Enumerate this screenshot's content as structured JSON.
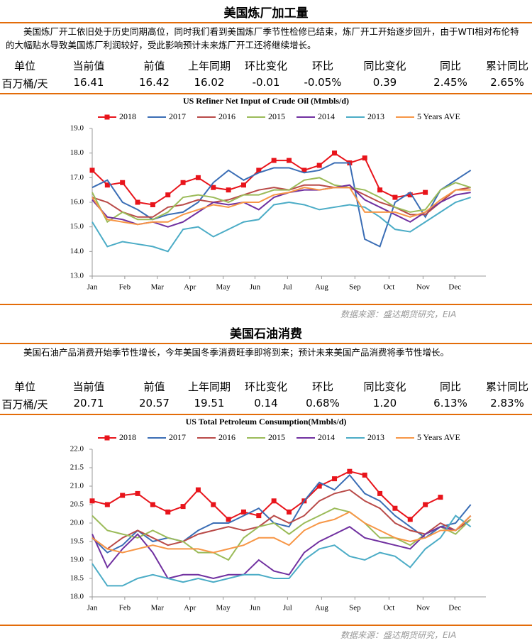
{
  "sections": [
    {
      "title": "美国炼厂加工量",
      "description": "美国炼厂开工依旧处于历史同期高位，同时我们看到美国炼厂季节性检修已结束，炼厂开工开始逐步回升，由于WTI相对布伦特的大幅贴水导致美国炼厂利润较好，受此影响预计未来炼厂开工还将继续增长。",
      "table": {
        "header": [
          "单位",
          "当前值",
          "前值",
          "上年同期",
          "环比变化",
          "环比",
          "同比变化",
          "同比",
          "累计同比"
        ],
        "rows": [
          [
            "百万桶/天",
            "16.41",
            "16.42",
            "16.02",
            "-0.01",
            "-0.05%",
            "0.39",
            "2.45%",
            "2.65%"
          ]
        ]
      },
      "source": "数据来源：盛达期货研究，EIA"
    },
    {
      "title": "美国石油消费",
      "description": "美国石油产品消费开始季节性增长，今年美国冬季消费旺季即将到来；预计未来美国产品消费将季节性增长。",
      "table": {
        "header": [
          "单位",
          "当前值",
          "前值",
          "上年同期",
          "环比变化",
          "环比",
          "同比变化",
          "同比",
          "累计同比"
        ],
        "rows": [
          [
            "百万桶/天",
            "20.71",
            "20.57",
            "19.51",
            "0.14",
            "0.68%",
            "1.20",
            "6.13%",
            "2.83%"
          ]
        ]
      },
      "source": "数据来源：盛达期货研究，EIA"
    }
  ],
  "chart_data": [
    {
      "type": "line",
      "title": "US Refiner Net Input of Crude Oil (Mmbls/d)",
      "x": [
        1,
        3,
        5,
        7,
        9,
        11,
        13,
        15,
        17,
        19,
        21,
        23,
        25,
        27,
        29,
        31,
        33,
        35,
        37,
        39,
        41,
        43,
        45,
        47,
        49,
        51
      ],
      "xlim": [
        1,
        53
      ],
      "xticks": [
        {
          "value": 1,
          "label": "Jan"
        },
        {
          "value": 5.3,
          "label": "Feb"
        },
        {
          "value": 9.6,
          "label": "Mar"
        },
        {
          "value": 13.9,
          "label": "Apr"
        },
        {
          "value": 18.3,
          "label": "May"
        },
        {
          "value": 22.5,
          "label": "Jun"
        },
        {
          "value": 26.8,
          "label": "Jul"
        },
        {
          "value": 31.3,
          "label": "Aug"
        },
        {
          "value": 35.7,
          "label": "Sep"
        },
        {
          "value": 40.2,
          "label": "Oct"
        },
        {
          "value": 44.7,
          "label": "Nov"
        },
        {
          "value": 48.9,
          "label": "Dec"
        }
      ],
      "ylim": [
        13,
        19
      ],
      "yticks": [
        {
          "value": 13,
          "label": "13.0"
        },
        {
          "value": 14,
          "label": "14.0"
        },
        {
          "value": 15,
          "label": "15.0"
        },
        {
          "value": 16,
          "label": "16.0"
        },
        {
          "value": 17,
          "label": "17.0"
        },
        {
          "value": 18,
          "label": "18.0"
        },
        {
          "value": 19,
          "label": "19.0"
        }
      ],
      "legend": "top",
      "series": [
        {
          "name": "2018",
          "color": "#e8141b",
          "marker": "square",
          "values": [
            17.3,
            16.7,
            16.8,
            16.0,
            15.9,
            16.3,
            16.8,
            17.0,
            16.6,
            16.5,
            16.7,
            17.3,
            17.7,
            17.7,
            17.3,
            17.5,
            18.0,
            17.6,
            17.8,
            16.5,
            16.2,
            16.3,
            16.4,
            null,
            null,
            null
          ]
        },
        {
          "name": "2017",
          "color": "#3a6db5",
          "values": [
            16.6,
            16.9,
            16.0,
            15.7,
            15.3,
            15.5,
            15.6,
            16.0,
            16.8,
            17.3,
            16.9,
            17.2,
            17.4,
            17.4,
            17.2,
            17.3,
            17.6,
            17.6,
            14.5,
            14.2,
            16.0,
            16.4,
            15.4,
            16.5,
            16.9,
            17.3
          ]
        },
        {
          "name": "2016",
          "color": "#b94a48",
          "values": [
            16.2,
            16.0,
            15.6,
            15.4,
            15.4,
            15.8,
            15.9,
            16.1,
            16.0,
            16.1,
            16.3,
            16.5,
            16.6,
            16.5,
            16.7,
            16.7,
            16.6,
            16.6,
            16.3,
            16.0,
            15.8,
            15.5,
            15.5,
            16.0,
            16.5,
            16.6
          ]
        },
        {
          "name": "2015",
          "color": "#9bbb59",
          "values": [
            16.4,
            15.2,
            15.6,
            15.3,
            15.3,
            15.6,
            16.2,
            16.3,
            16.2,
            16.0,
            16.3,
            16.3,
            16.5,
            16.5,
            16.9,
            17.0,
            16.7,
            16.6,
            16.5,
            16.2,
            15.8,
            15.6,
            15.7,
            16.5,
            16.8,
            16.6
          ]
        },
        {
          "name": "2014",
          "color": "#7030a0",
          "values": [
            16.1,
            15.4,
            15.3,
            15.1,
            15.2,
            15.0,
            15.2,
            15.6,
            16.0,
            15.9,
            16.0,
            15.7,
            16.2,
            16.4,
            16.5,
            16.5,
            16.6,
            16.7,
            16.1,
            15.8,
            15.5,
            15.2,
            15.6,
            16.0,
            16.3,
            16.4
          ]
        },
        {
          "name": "2013",
          "color": "#4bacc6",
          "values": [
            15.2,
            14.2,
            14.4,
            14.3,
            14.2,
            14.0,
            14.9,
            15.0,
            14.6,
            14.9,
            15.2,
            15.3,
            15.9,
            16.0,
            15.9,
            15.7,
            15.8,
            15.9,
            15.8,
            15.4,
            14.9,
            14.8,
            15.2,
            15.6,
            16.0,
            16.2
          ]
        },
        {
          "name": "5 Years AVE",
          "color": "#f79646",
          "values": [
            16.2,
            15.3,
            15.2,
            15.1,
            15.2,
            15.2,
            15.5,
            15.7,
            15.9,
            15.8,
            16.0,
            16.0,
            16.3,
            16.4,
            16.6,
            16.5,
            16.6,
            16.6,
            15.6,
            15.6,
            15.6,
            15.4,
            15.6,
            16.1,
            16.5,
            16.5
          ]
        }
      ]
    },
    {
      "type": "line",
      "title": "US Total Petroleum Consumption(Mmbls/d)",
      "x": [
        1,
        3,
        5,
        7,
        9,
        11,
        13,
        15,
        17,
        19,
        21,
        23,
        25,
        27,
        29,
        31,
        33,
        35,
        37,
        39,
        41,
        43,
        45,
        47,
        49,
        51
      ],
      "xlim": [
        1,
        53
      ],
      "xticks": [
        {
          "value": 1,
          "label": "Jan"
        },
        {
          "value": 5.3,
          "label": "Feb"
        },
        {
          "value": 9.6,
          "label": "Mar"
        },
        {
          "value": 13.9,
          "label": "Apr"
        },
        {
          "value": 18.3,
          "label": "May"
        },
        {
          "value": 22.5,
          "label": "Jun"
        },
        {
          "value": 26.8,
          "label": "Jul"
        },
        {
          "value": 31.3,
          "label": "Aug"
        },
        {
          "value": 35.7,
          "label": "Sep"
        },
        {
          "value": 40.2,
          "label": "Oct"
        },
        {
          "value": 44.7,
          "label": "Nov"
        },
        {
          "value": 48.9,
          "label": "Dec"
        }
      ],
      "ylim": [
        18,
        22
      ],
      "yticks": [
        {
          "value": 18,
          "label": "18.0"
        },
        {
          "value": 18.5,
          "label": "18.5"
        },
        {
          "value": 19,
          "label": "19.0"
        },
        {
          "value": 19.5,
          "label": "19.5"
        },
        {
          "value": 20,
          "label": "20.0"
        },
        {
          "value": 20.5,
          "label": "20.5"
        },
        {
          "value": 21,
          "label": "21.0"
        },
        {
          "value": 21.5,
          "label": "21.5"
        },
        {
          "value": 22,
          "label": "22.0"
        }
      ],
      "legend": "top",
      "series": [
        {
          "name": "2018",
          "color": "#e8141b",
          "marker": "square",
          "values": [
            20.6,
            20.5,
            20.75,
            20.8,
            20.5,
            20.3,
            20.45,
            20.9,
            20.5,
            20.1,
            20.3,
            20.2,
            20.6,
            20.3,
            20.6,
            21.0,
            21.2,
            21.4,
            21.3,
            20.8,
            20.4,
            20.1,
            20.5,
            20.7,
            null,
            null
          ]
        },
        {
          "name": "2017",
          "color": "#3a6db5",
          "values": [
            19.6,
            19.2,
            19.4,
            19.8,
            19.5,
            19.6,
            19.5,
            19.8,
            20.0,
            20.0,
            20.2,
            20.4,
            20.0,
            19.9,
            20.6,
            21.1,
            20.9,
            21.3,
            20.8,
            20.6,
            20.2,
            19.9,
            19.6,
            19.9,
            20.0,
            20.5
          ]
        },
        {
          "name": "2016",
          "color": "#b94a48",
          "values": [
            19.6,
            19.3,
            19.6,
            19.8,
            19.6,
            19.4,
            19.5,
            19.7,
            19.8,
            19.9,
            19.8,
            19.9,
            20.2,
            20.0,
            20.2,
            20.6,
            20.8,
            20.9,
            20.6,
            20.4,
            20.0,
            19.8,
            19.7,
            20.0,
            19.8,
            20.1
          ]
        },
        {
          "name": "2015",
          "color": "#9bbb59",
          "values": [
            20.2,
            19.8,
            19.7,
            19.6,
            19.8,
            19.6,
            19.5,
            19.2,
            19.2,
            19.0,
            19.6,
            19.9,
            20.0,
            19.7,
            20.0,
            20.2,
            20.4,
            20.3,
            20.0,
            19.6,
            19.6,
            19.4,
            19.7,
            19.9,
            19.7,
            20.1
          ]
        },
        {
          "name": "2014",
          "color": "#7030a0",
          "values": [
            19.7,
            18.8,
            19.3,
            19.7,
            19.2,
            18.5,
            18.6,
            18.6,
            18.5,
            18.6,
            18.6,
            19.0,
            18.7,
            18.6,
            19.2,
            19.5,
            19.7,
            19.9,
            19.6,
            19.5,
            19.4,
            19.3,
            19.7,
            19.9,
            19.8,
            20.2
          ]
        },
        {
          "name": "2013",
          "color": "#4bacc6",
          "values": [
            18.9,
            18.3,
            18.3,
            18.5,
            18.6,
            18.5,
            18.4,
            18.5,
            18.4,
            18.5,
            18.6,
            18.6,
            18.5,
            18.5,
            19.0,
            19.3,
            19.4,
            19.1,
            19.0,
            19.2,
            19.1,
            18.8,
            19.3,
            19.6,
            20.2,
            19.9
          ]
        },
        {
          "name": "5 Years AVE",
          "color": "#f79646",
          "values": [
            19.6,
            19.3,
            19.2,
            19.3,
            19.4,
            19.3,
            19.3,
            19.3,
            19.2,
            19.3,
            19.4,
            19.6,
            19.6,
            19.4,
            19.8,
            20.0,
            20.1,
            20.3,
            20.0,
            19.8,
            19.6,
            19.5,
            19.6,
            19.8,
            19.8,
            20.2
          ]
        }
      ]
    }
  ]
}
